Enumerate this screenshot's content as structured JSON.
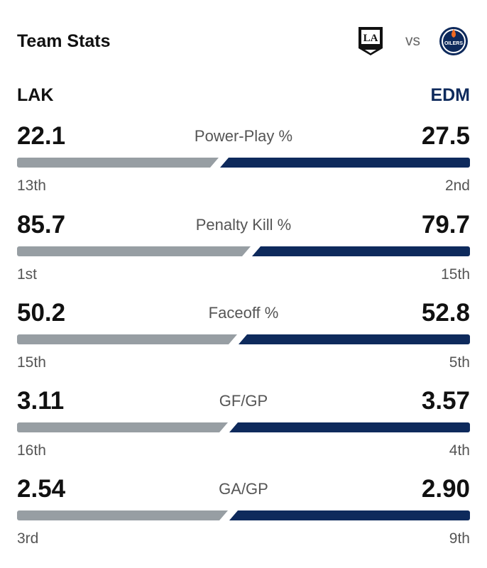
{
  "header": {
    "title": "Team Stats",
    "vs": "vs",
    "away_logo_text": "LA",
    "home_logo_text": "OILERS"
  },
  "teams": {
    "away": "LAK",
    "home": "EDM"
  },
  "colors": {
    "away_bar": "#979ea3",
    "home_bar": "#0e2a5c",
    "home_text": "#0e2a5c"
  },
  "stats": [
    {
      "label": "Power-Play %",
      "away_value": "22.1",
      "home_value": "27.5",
      "away_rank": "13th",
      "home_rank": "2nd",
      "away_num": 22.1,
      "home_num": 27.5
    },
    {
      "label": "Penalty Kill %",
      "away_value": "85.7",
      "home_value": "79.7",
      "away_rank": "1st",
      "home_rank": "15th",
      "away_num": 85.7,
      "home_num": 79.7
    },
    {
      "label": "Faceoff %",
      "away_value": "50.2",
      "home_value": "52.8",
      "away_rank": "15th",
      "home_rank": "5th",
      "away_num": 50.2,
      "home_num": 52.8
    },
    {
      "label": "GF/GP",
      "away_value": "3.11",
      "home_value": "3.57",
      "away_rank": "16th",
      "home_rank": "4th",
      "away_num": 3.11,
      "home_num": 3.57
    },
    {
      "label": "GA/GP",
      "away_value": "2.54",
      "home_value": "2.90",
      "away_rank": "3rd",
      "home_rank": "9th",
      "away_num": 2.54,
      "home_num": 2.9
    }
  ]
}
